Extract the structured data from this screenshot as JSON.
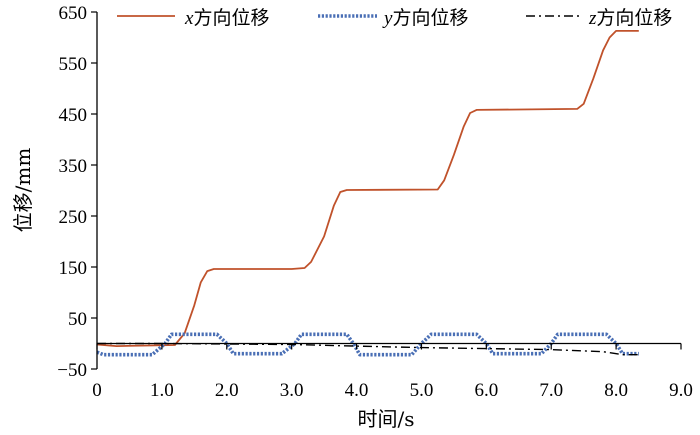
{
  "chart_data": {
    "type": "line",
    "title": "",
    "xlabel": "时间/s",
    "ylabel": "位移/mm",
    "xlim": [
      0,
      9
    ],
    "ylim": [
      -50,
      650
    ],
    "x_ticks": [
      "0",
      "1.0",
      "2.0",
      "3.0",
      "4.0",
      "5.0",
      "6.0",
      "7.0",
      "8.0",
      "9.0"
    ],
    "y_ticks": [
      "-50",
      "50",
      "150",
      "250",
      "350",
      "450",
      "550",
      "650"
    ],
    "legend_position": "top",
    "grid": false,
    "series": [
      {
        "name": "x方向位移",
        "legend_var": "x",
        "legend_rest": "方向位移",
        "color": "#c0522b",
        "style": "solid",
        "points": [
          [
            0.0,
            -2
          ],
          [
            0.3,
            -5
          ],
          [
            0.8,
            -4
          ],
          [
            1.2,
            -3
          ],
          [
            1.35,
            20
          ],
          [
            1.5,
            75
          ],
          [
            1.6,
            120
          ],
          [
            1.7,
            142
          ],
          [
            1.8,
            146
          ],
          [
            3.0,
            146
          ],
          [
            3.2,
            148
          ],
          [
            3.3,
            160
          ],
          [
            3.5,
            210
          ],
          [
            3.65,
            270
          ],
          [
            3.75,
            297
          ],
          [
            3.85,
            301
          ],
          [
            5.25,
            302
          ],
          [
            5.35,
            320
          ],
          [
            5.5,
            370
          ],
          [
            5.65,
            425
          ],
          [
            5.75,
            452
          ],
          [
            5.85,
            458
          ],
          [
            7.4,
            460
          ],
          [
            7.5,
            470
          ],
          [
            7.65,
            520
          ],
          [
            7.8,
            575
          ],
          [
            7.9,
            600
          ],
          [
            8.0,
            613
          ],
          [
            8.35,
            613
          ]
        ]
      },
      {
        "name": "y方向位移",
        "legend_var": "y",
        "legend_rest": "方向位移",
        "color": "#4a6fb5",
        "style": "dotted",
        "points": [
          [
            0.0,
            -17
          ],
          [
            0.1,
            -22
          ],
          [
            0.85,
            -22
          ],
          [
            1.05,
            0
          ],
          [
            1.15,
            18
          ],
          [
            1.85,
            18
          ],
          [
            2.0,
            0
          ],
          [
            2.1,
            -20
          ],
          [
            2.85,
            -20
          ],
          [
            3.05,
            0
          ],
          [
            3.15,
            18
          ],
          [
            3.85,
            18
          ],
          [
            3.95,
            0
          ],
          [
            4.05,
            -22
          ],
          [
            4.85,
            -22
          ],
          [
            5.0,
            0
          ],
          [
            5.15,
            18
          ],
          [
            5.85,
            18
          ],
          [
            6.0,
            0
          ],
          [
            6.1,
            -20
          ],
          [
            6.85,
            -20
          ],
          [
            7.0,
            0
          ],
          [
            7.1,
            18
          ],
          [
            7.85,
            18
          ],
          [
            8.0,
            0
          ],
          [
            8.1,
            -20
          ],
          [
            8.35,
            -20
          ]
        ]
      },
      {
        "name": "z方向位移",
        "legend_var": "z",
        "legend_rest": "方向位移",
        "color": "#000000",
        "style": "dashdot",
        "points": [
          [
            0.0,
            0
          ],
          [
            1.0,
            0
          ],
          [
            2.0,
            -1
          ],
          [
            3.0,
            -2
          ],
          [
            4.0,
            -5
          ],
          [
            5.0,
            -8
          ],
          [
            6.0,
            -10
          ],
          [
            7.0,
            -12
          ],
          [
            7.8,
            -16
          ],
          [
            8.1,
            -22
          ],
          [
            8.35,
            -22
          ]
        ]
      }
    ]
  }
}
